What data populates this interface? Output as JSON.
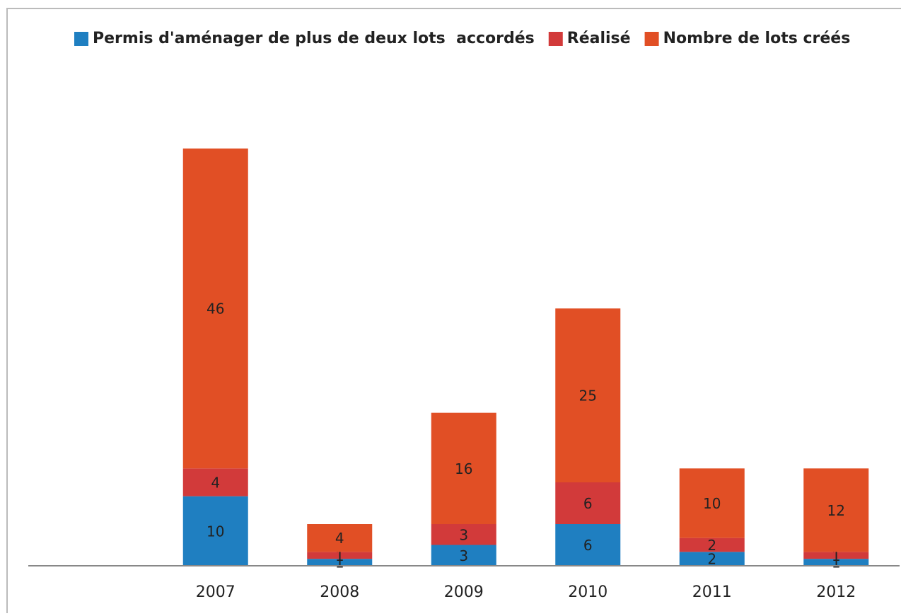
{
  "chart_data": {
    "type": "stacked_bar",
    "categories": [
      "2007",
      "2008",
      "2009",
      "2010",
      "2011",
      "2012"
    ],
    "series": [
      {
        "name": "Permis d'aménager de plus de deux lots  accordés",
        "color": "#1f7fc1",
        "values": [
          10,
          1,
          3,
          6,
          2,
          1
        ]
      },
      {
        "name": "Réalisé",
        "color": "#d23a3a",
        "values": [
          4,
          1,
          3,
          6,
          2,
          1
        ]
      },
      {
        "name": "Nombre de lots créés",
        "color": "#e14f25",
        "values": [
          46,
          4,
          16,
          25,
          10,
          12
        ]
      }
    ],
    "legend": "top"
  }
}
